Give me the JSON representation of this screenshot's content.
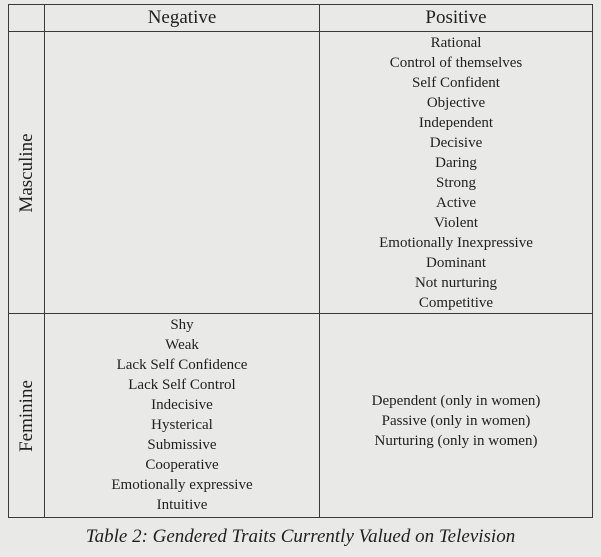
{
  "table": {
    "columns": [
      "Negative",
      "Positive"
    ],
    "rows": [
      {
        "label": "Masculine",
        "negative": [],
        "positive": [
          "Rational",
          "Control of themselves",
          "Self Confident",
          "Objective",
          "Independent",
          "Decisive",
          "Daring",
          "Strong",
          "Active",
          "Violent",
          "Emotionally Inexpressive",
          "Dominant",
          "Not nurturing",
          "Competitive"
        ]
      },
      {
        "label": "Feminine",
        "negative": [
          "Shy",
          "Weak",
          "Lack Self Confidence",
          "Lack Self Control",
          "Indecisive",
          "Hysterical",
          "Submissive",
          "Cooperative",
          "Emotionally expressive",
          "Intuitive"
        ],
        "positive": [
          "Dependent (only in women)",
          "Passive (only in women)",
          "Nurturing (only in women)"
        ]
      }
    ]
  },
  "caption": "Table 2: Gendered Traits Currently Valued on Television"
}
